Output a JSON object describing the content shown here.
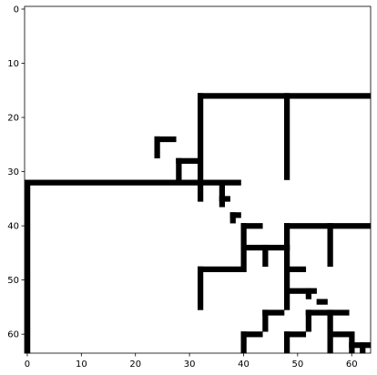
{
  "chart_data": {
    "type": "heatmap",
    "title": "",
    "xlabel": "",
    "ylabel": "",
    "xlim": [
      -0.5,
      63.5
    ],
    "ylim": [
      63.5,
      -0.5
    ],
    "x_ticks": [
      0,
      10,
      20,
      30,
      40,
      50,
      60
    ],
    "y_ticks": [
      0,
      10,
      20,
      30,
      40,
      50,
      60
    ],
    "grid": false,
    "colormap": {
      "0": "#ffffff",
      "1": "#000000"
    },
    "wall_segments": [
      {
        "orientation": "h",
        "row": 16,
        "from": 32,
        "to": 63
      },
      {
        "orientation": "v",
        "col": 32,
        "from": 16,
        "to": 35
      },
      {
        "orientation": "v",
        "col": 48,
        "from": 16,
        "to": 31
      },
      {
        "orientation": "h",
        "row": 24,
        "from": 24,
        "to": 27
      },
      {
        "orientation": "v",
        "col": 24,
        "from": 24,
        "to": 27
      },
      {
        "orientation": "h",
        "row": 28,
        "from": 28,
        "to": 31
      },
      {
        "orientation": "v",
        "col": 28,
        "from": 28,
        "to": 31
      },
      {
        "orientation": "h",
        "row": 32,
        "from": 0,
        "to": 39
      },
      {
        "orientation": "v",
        "col": 0,
        "from": 32,
        "to": 63
      },
      {
        "orientation": "v",
        "col": 36,
        "from": 33,
        "to": 36
      },
      {
        "orientation": "h",
        "row": 35,
        "from": 36,
        "to": 37
      },
      {
        "orientation": "h",
        "row": 38,
        "from": 38,
        "to": 39
      },
      {
        "orientation": "v",
        "col": 38,
        "from": 38,
        "to": 39
      },
      {
        "orientation": "h",
        "row": 40,
        "from": 40,
        "to": 43
      },
      {
        "orientation": "v",
        "col": 40,
        "from": 40,
        "to": 48
      },
      {
        "orientation": "h",
        "row": 40,
        "from": 48,
        "to": 63
      },
      {
        "orientation": "v",
        "col": 56,
        "from": 40,
        "to": 47
      },
      {
        "orientation": "h",
        "row": 44,
        "from": 40,
        "to": 48
      },
      {
        "orientation": "v",
        "col": 44,
        "from": 44,
        "to": 47
      },
      {
        "orientation": "v",
        "col": 48,
        "from": 40,
        "to": 55
      },
      {
        "orientation": "h",
        "row": 48,
        "from": 32,
        "to": 39
      },
      {
        "orientation": "v",
        "col": 32,
        "from": 48,
        "to": 55
      },
      {
        "orientation": "h",
        "row": 48,
        "from": 48,
        "to": 51
      },
      {
        "orientation": "h",
        "row": 52,
        "from": 48,
        "to": 53
      },
      {
        "orientation": "v",
        "col": 52,
        "from": 52,
        "to": 53
      },
      {
        "orientation": "h",
        "row": 54,
        "from": 54,
        "to": 55
      },
      {
        "orientation": "h",
        "row": 56,
        "from": 44,
        "to": 47
      },
      {
        "orientation": "v",
        "col": 44,
        "from": 56,
        "to": 59
      },
      {
        "orientation": "h",
        "row": 56,
        "from": 52,
        "to": 59
      },
      {
        "orientation": "v",
        "col": 52,
        "from": 56,
        "to": 59
      },
      {
        "orientation": "v",
        "col": 56,
        "from": 56,
        "to": 63
      },
      {
        "orientation": "h",
        "row": 60,
        "from": 40,
        "to": 43
      },
      {
        "orientation": "v",
        "col": 40,
        "from": 60,
        "to": 63
      },
      {
        "orientation": "h",
        "row": 60,
        "from": 48,
        "to": 51
      },
      {
        "orientation": "v",
        "col": 48,
        "from": 60,
        "to": 63
      },
      {
        "orientation": "h",
        "row": 60,
        "from": 56,
        "to": 59
      },
      {
        "orientation": "v",
        "col": 60,
        "from": 60,
        "to": 63
      },
      {
        "orientation": "h",
        "row": 62,
        "from": 60,
        "to": 63
      },
      {
        "orientation": "v",
        "col": 62,
        "from": 62,
        "to": 63
      }
    ]
  }
}
